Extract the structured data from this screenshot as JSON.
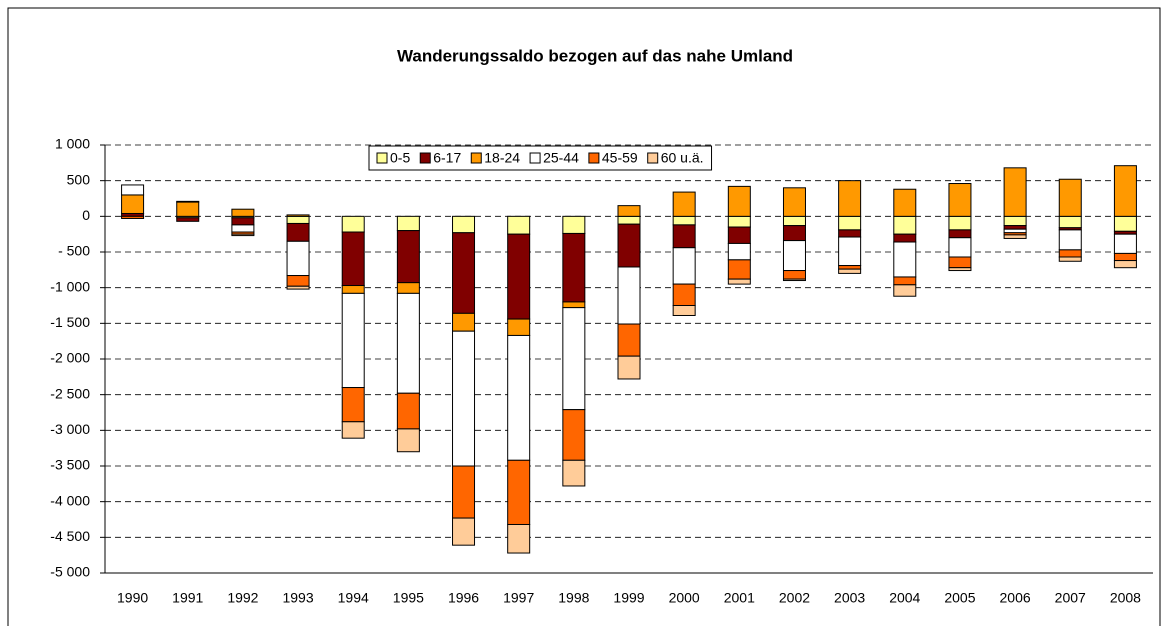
{
  "chart_data": {
    "type": "stacked_bar",
    "title": "Wanderungssaldo bezogen auf das nahe Umland",
    "categories": [
      "1990",
      "1991",
      "1992",
      "1993",
      "1994",
      "1995",
      "1996",
      "1997",
      "1998",
      "1999",
      "2000",
      "2001",
      "2002",
      "2003",
      "2004",
      "2005",
      "2006",
      "2007",
      "2008"
    ],
    "series": [
      {
        "name": "0-5",
        "color": "#ffff99",
        "values": [
          0,
          -20,
          -20,
          -100,
          -220,
          -200,
          -230,
          -250,
          -240,
          -110,
          -120,
          -150,
          -130,
          -190,
          -250,
          -190,
          -130,
          -160,
          -210
        ]
      },
      {
        "name": "6-17",
        "color": "#800000",
        "values": [
          40,
          -50,
          -100,
          -250,
          -750,
          -730,
          -1130,
          -1190,
          -960,
          -600,
          -320,
          -230,
          -210,
          -100,
          -110,
          -110,
          -50,
          -30,
          -40
        ]
      },
      {
        "name": "18-24",
        "color": "#ff9900",
        "values": [
          260,
          200,
          100,
          20,
          -110,
          -150,
          -250,
          -230,
          -80,
          150,
          340,
          420,
          400,
          500,
          380,
          460,
          680,
          520,
          710
        ]
      },
      {
        "name": "25-44",
        "color": "#ffffff",
        "values": [
          140,
          10,
          -100,
          -480,
          -1320,
          -1400,
          -1890,
          -1750,
          -1430,
          -800,
          -510,
          -230,
          -420,
          -400,
          -490,
          -270,
          -50,
          -280,
          -270
        ]
      },
      {
        "name": "45-59",
        "color": "#ff6600",
        "values": [
          -30,
          0,
          -30,
          -150,
          -480,
          -500,
          -730,
          -900,
          -710,
          -450,
          -300,
          -270,
          -120,
          -50,
          -110,
          -150,
          -30,
          -100,
          -100
        ]
      },
      {
        "name": "60 u.ä.",
        "color": "#ffcc99",
        "values": [
          0,
          0,
          -20,
          -40,
          -230,
          -320,
          -380,
          -400,
          -360,
          -320,
          -140,
          -70,
          -20,
          -60,
          -160,
          -40,
          -50,
          -60,
          -100
        ]
      }
    ],
    "ylim": [
      -5000,
      1000
    ],
    "yticks": [
      {
        "value": -5000,
        "label": "-5 000"
      },
      {
        "value": -4500,
        "label": "-4 500"
      },
      {
        "value": -4000,
        "label": "-4 000"
      },
      {
        "value": -3500,
        "label": "-3 500"
      },
      {
        "value": -3000,
        "label": "-3 000"
      },
      {
        "value": -2500,
        "label": "-2 500"
      },
      {
        "value": -2000,
        "label": "-2 000"
      },
      {
        "value": -1500,
        "label": "-1 500"
      },
      {
        "value": -1000,
        "label": "-1 000"
      },
      {
        "value": -500,
        "label": "- 500"
      },
      0,
      500,
      {
        "value": 1000,
        "label": "1 000"
      }
    ],
    "grid": true,
    "legend": "top"
  }
}
